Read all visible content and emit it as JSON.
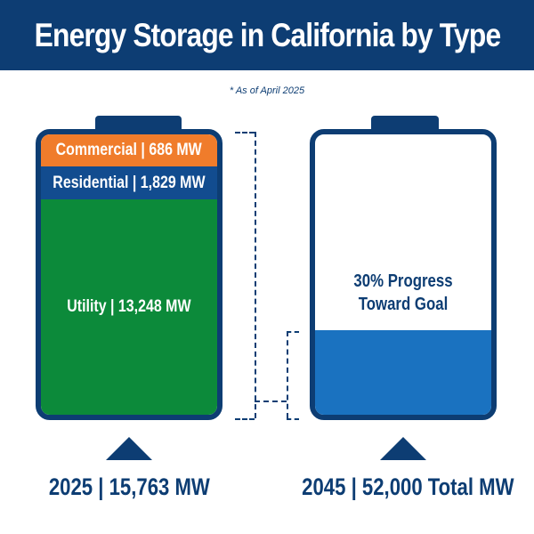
{
  "header": {
    "title": "Energy Storage in California by Type"
  },
  "note": "* As of April 2025",
  "colors": {
    "navy": "#0d3d73",
    "commercial": "#f07c2b",
    "residential": "#124c8f",
    "utility": "#0c8a3a",
    "goal_fill": "#1a72c0"
  },
  "chart_data": [
    {
      "type": "bar",
      "stacked": true,
      "title": "2025 | 15,763 MW",
      "total": 15763,
      "unit": "MW",
      "segments": [
        {
          "label": "Commercial | 686 MW",
          "name": "Commercial",
          "value": 686,
          "color": "#f07c2b"
        },
        {
          "label": "Residential | 1,829 MW",
          "name": "Residential",
          "value": 1829,
          "color": "#124c8f"
        },
        {
          "label": "Utility | 13,248 MW",
          "name": "Utility",
          "value": 13248,
          "color": "#0c8a3a"
        }
      ]
    },
    {
      "type": "bar",
      "title": "2045 | 52,000 Total  MW",
      "total": 52000,
      "unit": "MW",
      "progress_label": "30% Progress Toward Goal",
      "progress": 0.3,
      "color": "#1a72c0"
    }
  ]
}
